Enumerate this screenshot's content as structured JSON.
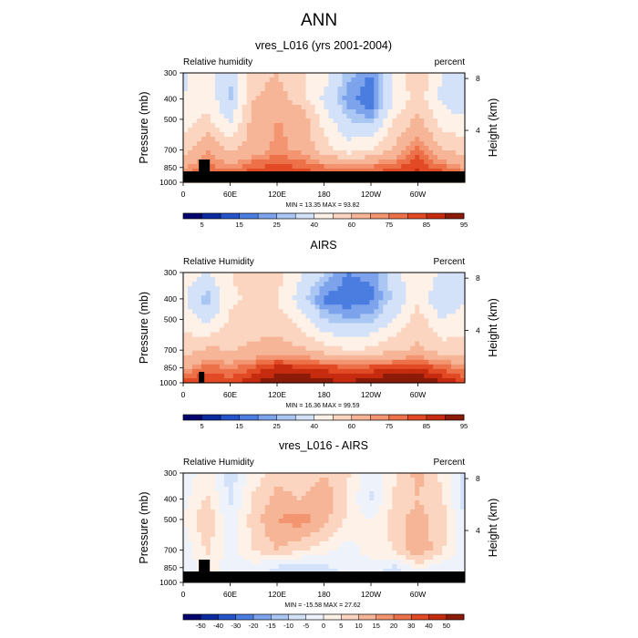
{
  "figure_title": "ANN",
  "chart_data": [
    {
      "type": "heatmap",
      "title": "vres_L016 (yrs 2001-2004)",
      "left_label": "Relative humidity",
      "right_label": "percent",
      "ylabel": "Pressure (mb)",
      "ylabel_right": "Height (km)",
      "xticks": [
        "0",
        "60E",
        "120E",
        "180",
        "120W",
        "60W"
      ],
      "xtick_lon": [
        0,
        60,
        120,
        180,
        240,
        300
      ],
      "yticks": [
        "300",
        "400",
        "500",
        "700",
        "850",
        "1000"
      ],
      "ytick_p": [
        300,
        400,
        500,
        700,
        850,
        1000
      ],
      "height_ticks": [
        "8",
        "4"
      ],
      "height_km": [
        8,
        4
      ],
      "minmax": "MIN = 13.35  MAX = 93.82",
      "colorbar_labels": [
        "5",
        "15",
        "25",
        "40",
        "60",
        "75",
        "85",
        "95"
      ],
      "colorbar_colors": [
        "#03046e",
        "#0b2aa0",
        "#2553c9",
        "#4b7de0",
        "#7ca3ec",
        "#aac6f3",
        "#d3e2f8",
        "#fdf1e8",
        "#fbd5c0",
        "#f7b598",
        "#f39571",
        "#ec7149",
        "#e14a24",
        "#c62b0f",
        "#8b1a08"
      ],
      "levels": [
        5,
        10,
        15,
        20,
        25,
        30,
        40,
        50,
        60,
        70,
        75,
        80,
        85,
        90,
        95
      ],
      "field": {
        "lon": [
          0,
          30,
          60,
          90,
          120,
          150,
          180,
          210,
          240,
          270,
          300,
          330,
          360
        ],
        "p": [
          300,
          400,
          500,
          700,
          850,
          1000
        ],
        "values": [
          [
            38,
            45,
            30,
            55,
            60,
            52,
            45,
            28,
            20,
            42,
            60,
            40,
            35
          ],
          [
            40,
            48,
            28,
            60,
            65,
            55,
            38,
            22,
            15,
            40,
            55,
            38,
            30
          ],
          [
            45,
            52,
            38,
            65,
            70,
            68,
            45,
            30,
            25,
            50,
            62,
            45,
            42
          ],
          [
            55,
            70,
            58,
            65,
            72,
            68,
            55,
            45,
            50,
            62,
            78,
            60,
            55
          ],
          [
            68,
            78,
            72,
            80,
            82,
            80,
            76,
            74,
            76,
            80,
            84,
            78,
            70
          ],
          [
            82,
            88,
            85,
            86,
            88,
            87,
            86,
            85,
            86,
            88,
            90,
            86,
            84
          ]
        ]
      }
    },
    {
      "type": "heatmap",
      "title": "AIRS",
      "left_label": "Relative Humidity",
      "right_label": "Percent",
      "ylabel": "Pressure (mb)",
      "ylabel_right": "Height (km)",
      "xticks": [
        "0",
        "60E",
        "120E",
        "180",
        "120W",
        "60W"
      ],
      "xtick_lon": [
        0,
        60,
        120,
        180,
        240,
        300
      ],
      "yticks": [
        "300",
        "400",
        "500",
        "700",
        "850",
        "1000"
      ],
      "ytick_p": [
        300,
        400,
        500,
        700,
        850,
        1000
      ],
      "height_ticks": [
        "8",
        "4"
      ],
      "height_km": [
        8,
        4
      ],
      "minmax": "MIN = 16.36  MAX = 99.59",
      "colorbar_labels": [
        "5",
        "15",
        "25",
        "40",
        "60",
        "75",
        "85",
        "95"
      ],
      "colorbar_colors": [
        "#03046e",
        "#0b2aa0",
        "#2553c9",
        "#4b7de0",
        "#7ca3ec",
        "#aac6f3",
        "#d3e2f8",
        "#fdf1e8",
        "#fbd5c0",
        "#f7b598",
        "#f39571",
        "#ec7149",
        "#e14a24",
        "#c62b0f",
        "#8b1a08"
      ],
      "levels": [
        5,
        10,
        15,
        20,
        25,
        30,
        40,
        50,
        60,
        70,
        75,
        80,
        85,
        90,
        95
      ],
      "field": {
        "lon": [
          0,
          30,
          60,
          90,
          120,
          150,
          180,
          210,
          240,
          270,
          300,
          330,
          360
        ],
        "p": [
          300,
          400,
          500,
          700,
          850,
          1000
        ],
        "values": [
          [
            45,
            40,
            50,
            55,
            55,
            42,
            30,
            20,
            22,
            35,
            50,
            38,
            40
          ],
          [
            42,
            25,
            48,
            52,
            50,
            35,
            18,
            16,
            18,
            32,
            48,
            30,
            38
          ],
          [
            48,
            35,
            52,
            55,
            55,
            45,
            30,
            25,
            28,
            40,
            55,
            40,
            45
          ],
          [
            55,
            62,
            60,
            62,
            65,
            62,
            55,
            50,
            52,
            58,
            62,
            55,
            55
          ],
          [
            68,
            78,
            74,
            80,
            88,
            86,
            84,
            80,
            82,
            84,
            85,
            80,
            72
          ],
          [
            82,
            86,
            84,
            90,
            94,
            95,
            92,
            90,
            94,
            98,
            99,
            90,
            84
          ]
        ]
      }
    },
    {
      "type": "heatmap",
      "title": "vres_L016 - AIRS",
      "left_label": "Relative Humidity",
      "right_label": "Percent",
      "ylabel": "Pressure (mb)",
      "ylabel_right": "Height (km)",
      "xticks": [
        "0",
        "60E",
        "120E",
        "180",
        "120W",
        "60W"
      ],
      "xtick_lon": [
        0,
        60,
        120,
        180,
        240,
        300
      ],
      "yticks": [
        "300",
        "400",
        "500",
        "700",
        "850",
        "1000"
      ],
      "ytick_p": [
        300,
        400,
        500,
        700,
        850,
        1000
      ],
      "height_ticks": [
        "8",
        "4"
      ],
      "height_km": [
        8,
        4
      ],
      "minmax": "MIN = -15.58  MAX = 27.62",
      "colorbar_labels": [
        "-50",
        "-40",
        "-30",
        "-20",
        "-15",
        "-10",
        "-5",
        "0",
        "5",
        "10",
        "15",
        "20",
        "30",
        "40",
        "50"
      ],
      "colorbar_colors": [
        "#03046e",
        "#0b2aa0",
        "#2553c9",
        "#4b7de0",
        "#7ca3ec",
        "#aac6f3",
        "#d3e2f8",
        "#eef2fb",
        "#fdf1e8",
        "#fbd5c0",
        "#f7b598",
        "#f39571",
        "#ec7149",
        "#e14a24",
        "#c62b0f",
        "#8b1a08"
      ],
      "levels": [
        -50,
        -40,
        -30,
        -20,
        -15,
        -10,
        -5,
        0,
        5,
        10,
        15,
        20,
        30,
        40,
        50
      ],
      "field": {
        "lon": [
          0,
          30,
          60,
          90,
          120,
          150,
          180,
          210,
          240,
          270,
          300,
          330,
          360
        ],
        "p": [
          300,
          400,
          500,
          700,
          850,
          1000
        ],
        "values": [
          [
            -5,
            4,
            -8,
            2,
            8,
            6,
            10,
            6,
            -4,
            4,
            12,
            4,
            -6
          ],
          [
            -2,
            6,
            -6,
            6,
            12,
            10,
            14,
            4,
            -6,
            6,
            10,
            6,
            -8
          ],
          [
            0,
            10,
            -4,
            8,
            15,
            18,
            12,
            4,
            0,
            8,
            12,
            8,
            -4
          ],
          [
            -4,
            6,
            -2,
            5,
            10,
            6,
            2,
            -2,
            2,
            5,
            15,
            6,
            -3
          ],
          [
            -6,
            4,
            -4,
            -2,
            -6,
            -8,
            -6,
            -4,
            -2,
            -6,
            2,
            -3,
            -5
          ],
          [
            -4,
            2,
            -2,
            -4,
            -6,
            -8,
            -6,
            -5,
            -8,
            -10,
            -9,
            -4,
            -3
          ]
        ]
      }
    }
  ]
}
